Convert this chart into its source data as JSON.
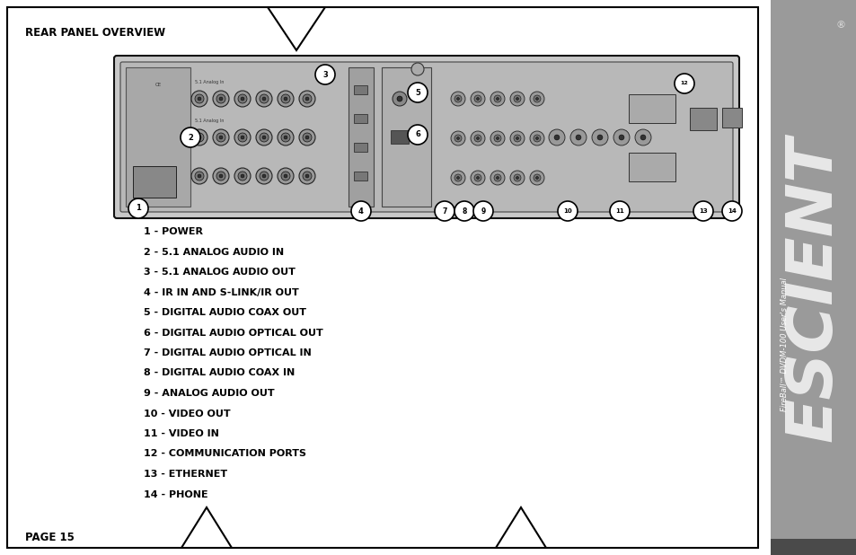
{
  "title": "REAR PANEL OVERVIEW",
  "page": "PAGE 15",
  "sidebar_color": "#9a9a9a",
  "sidebar_text": "ESCIENT",
  "sidebar_subtext": "FireBall™ DVDM-100 User's Manual",
  "bg_color": "#ffffff",
  "items": [
    "1 - POWER",
    "2 - 5.1 ANALOG AUDIO IN",
    "3 - 5.1 ANALOG AUDIO OUT",
    "4 - IR IN AND S-LINK/IR OUT",
    "5 - DIGITAL AUDIO COAX OUT",
    "6 - DIGITAL AUDIO OPTICAL OUT",
    "7 - DIGITAL AUDIO OPTICAL IN",
    "8 - DIGITAL AUDIO COAX IN",
    "9 - ANALOG AUDIO OUT",
    "10 - VIDEO OUT",
    "11 - VIDEO IN",
    "12 - COMMUNICATION PORTS",
    "13 - ETHERNET",
    "14 - PHONE"
  ]
}
